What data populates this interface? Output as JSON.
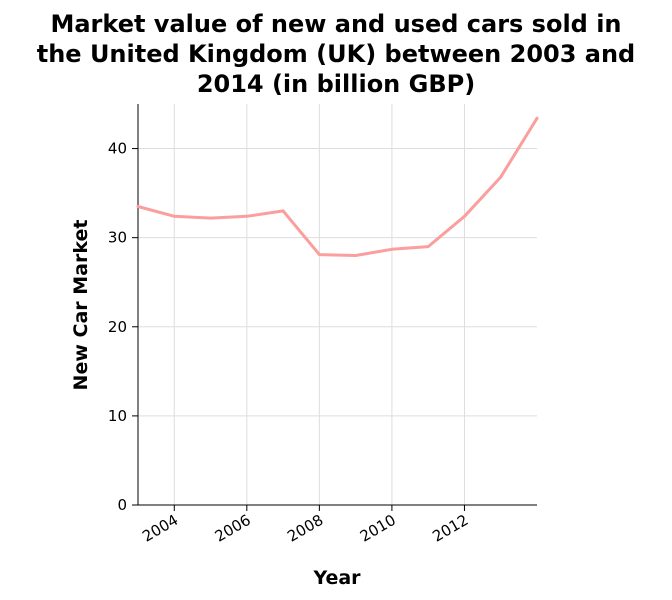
{
  "chart_data": {
    "type": "line",
    "title_lines": [
      "Market value of new and used cars sold in",
      "the United Kingdom (UK) between 2003 and",
      "2014 (in billion GBP)"
    ],
    "xlabel": "Year",
    "ylabel": "New Car Market",
    "xlim": [
      2003,
      2014
    ],
    "ylim": [
      0,
      45
    ],
    "x_ticks": [
      2004,
      2006,
      2008,
      2010,
      2012
    ],
    "y_ticks": [
      0,
      10,
      20,
      30,
      40
    ],
    "grid": true,
    "line_color": "#fa9e9e",
    "series": [
      {
        "x": [
          2003,
          2004,
          2005,
          2006,
          2007,
          2008,
          2009,
          2010,
          2011,
          2012,
          2013,
          2014
        ],
        "values": [
          33.5,
          32.4,
          32.2,
          32.4,
          33.0,
          28.1,
          28.0,
          28.7,
          29.0,
          32.4,
          36.8,
          43.4
        ]
      }
    ]
  }
}
